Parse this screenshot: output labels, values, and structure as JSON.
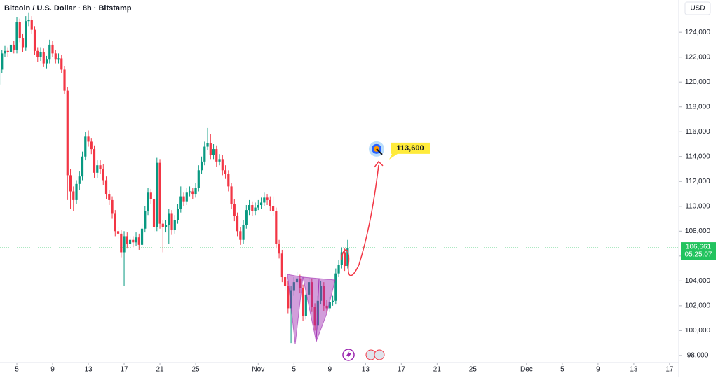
{
  "chart_data": {
    "type": "candlestick",
    "title": "Bitcoin / U.S. Dollar · 8h · Bitstamp",
    "currency": "USD",
    "up_color": "#089981",
    "down_color": "#f23645",
    "xlim": [
      0.35,
      226.2
    ],
    "ylim": [
      97600,
      126600
    ],
    "xticks": [
      {
        "value": 6,
        "label": "5"
      },
      {
        "value": 18,
        "label": "9"
      },
      {
        "value": 30,
        "label": "13"
      },
      {
        "value": 42,
        "label": "17"
      },
      {
        "value": 54,
        "label": "21"
      },
      {
        "value": 66,
        "label": "25"
      },
      {
        "value": 87,
        "label": "Nov"
      },
      {
        "value": 99,
        "label": "5"
      },
      {
        "value": 111,
        "label": "9"
      },
      {
        "value": 123,
        "label": "13"
      },
      {
        "value": 135,
        "label": "17"
      },
      {
        "value": 147,
        "label": "21"
      },
      {
        "value": 159,
        "label": "25"
      },
      {
        "value": 177,
        "label": "Dec"
      },
      {
        "value": 189,
        "label": "5"
      },
      {
        "value": 201,
        "label": "9"
      },
      {
        "value": 213,
        "label": "13"
      },
      {
        "value": 225,
        "label": "17"
      }
    ],
    "yticks": [
      {
        "value": 98000,
        "label": "98,000"
      },
      {
        "value": 100000,
        "label": "100,000"
      },
      {
        "value": 102000,
        "label": "102,000"
      },
      {
        "value": 104000,
        "label": "104,000"
      },
      {
        "value": 106000,
        "label": "106,000"
      },
      {
        "value": 108000,
        "label": "108,000"
      },
      {
        "value": 110000,
        "label": "110,000"
      },
      {
        "value": 112000,
        "label": "112,000"
      },
      {
        "value": 114000,
        "label": "114,000"
      },
      {
        "value": 116000,
        "label": "116,000"
      },
      {
        "value": 118000,
        "label": "118,000"
      },
      {
        "value": 120000,
        "label": "120,000"
      },
      {
        "value": 122000,
        "label": "122,000"
      },
      {
        "value": 124000,
        "label": "124,000"
      }
    ],
    "last_price": {
      "value": 106661,
      "label": "106,661",
      "countdown": "05:25:07",
      "color": "#22c35e"
    },
    "target": {
      "value": 113600,
      "label": "113,600"
    },
    "candles": [
      [
        119800,
        121300,
        119300,
        121000
      ],
      [
        121000,
        122600,
        120700,
        122300
      ],
      [
        122300,
        122900,
        122000,
        122500
      ],
      [
        122500,
        122800,
        122000,
        122400
      ],
      [
        122400,
        123400,
        122100,
        123000
      ],
      [
        123000,
        123300,
        122300,
        122600
      ],
      [
        122600,
        125200,
        122300,
        124800
      ],
      [
        124800,
        125100,
        123200,
        123500
      ],
      [
        123500,
        123900,
        122400,
        122800
      ],
      [
        122800,
        125300,
        122500,
        124900
      ],
      [
        124900,
        125600,
        124500,
        125000
      ],
      [
        125000,
        125300,
        123900,
        124200
      ],
      [
        124200,
        124500,
        122200,
        122500
      ],
      [
        122500,
        122800,
        121600,
        122000
      ],
      [
        122000,
        122800,
        121700,
        122400
      ],
      [
        122400,
        122700,
        121200,
        121500
      ],
      [
        121500,
        122100,
        121100,
        121800
      ],
      [
        121800,
        123400,
        121500,
        123000
      ],
      [
        123000,
        123300,
        122000,
        122300
      ],
      [
        122300,
        122600,
        121500,
        121800
      ],
      [
        121800,
        122300,
        121500,
        121900
      ],
      [
        121900,
        122200,
        120700,
        121000
      ],
      [
        121000,
        121300,
        119000,
        119300
      ],
      [
        119300,
        119600,
        110500,
        112500
      ],
      [
        112500,
        113000,
        109800,
        111200
      ],
      [
        111200,
        111600,
        109600,
        110500
      ],
      [
        110500,
        112100,
        110200,
        111800
      ],
      [
        111800,
        112800,
        111300,
        112400
      ],
      [
        112400,
        114400,
        112100,
        114000
      ],
      [
        114000,
        116000,
        113700,
        115600
      ],
      [
        115600,
        116100,
        114800,
        115200
      ],
      [
        115200,
        115500,
        114200,
        114600
      ],
      [
        114600,
        114900,
        112300,
        112700
      ],
      [
        112700,
        113700,
        112300,
        113300
      ],
      [
        113300,
        113700,
        112600,
        113000
      ],
      [
        113000,
        113400,
        111700,
        112100
      ],
      [
        112100,
        112400,
        110600,
        111000
      ],
      [
        111000,
        111300,
        110100,
        110500
      ],
      [
        110500,
        110800,
        109000,
        109400
      ],
      [
        109400,
        109700,
        107600,
        108000
      ],
      [
        108000,
        108300,
        107400,
        107800
      ],
      [
        107800,
        108100,
        105900,
        106300
      ],
      [
        106300,
        108000,
        103600,
        107600
      ],
      [
        107600,
        107900,
        106600,
        107000
      ],
      [
        107000,
        107600,
        106700,
        107300
      ],
      [
        107300,
        107600,
        106700,
        107100
      ],
      [
        107100,
        107900,
        106800,
        107500
      ],
      [
        107500,
        107800,
        106500,
        106900
      ],
      [
        106900,
        108600,
        106600,
        108200
      ],
      [
        108200,
        110000,
        107900,
        109600
      ],
      [
        109600,
        111500,
        109300,
        111100
      ],
      [
        111100,
        111400,
        110200,
        110600
      ],
      [
        110600,
        110900,
        107900,
        108300
      ],
      [
        108300,
        113900,
        108000,
        113500
      ],
      [
        113500,
        113800,
        108200,
        108600
      ],
      [
        108600,
        108900,
        106300,
        108300
      ],
      [
        108300,
        108900,
        107900,
        108500
      ],
      [
        108500,
        109800,
        107000,
        109400
      ],
      [
        109400,
        109700,
        107700,
        108100
      ],
      [
        108100,
        109300,
        107800,
        108900
      ],
      [
        108900,
        110200,
        108600,
        109800
      ],
      [
        109800,
        111600,
        109500,
        110800
      ],
      [
        110800,
        111100,
        110000,
        110400
      ],
      [
        110400,
        111500,
        110100,
        111100
      ],
      [
        111100,
        111600,
        110800,
        111200
      ],
      [
        111200,
        111500,
        110600,
        111000
      ],
      [
        111000,
        111900,
        110700,
        111500
      ],
      [
        111500,
        113300,
        111200,
        112900
      ],
      [
        112900,
        114000,
        112600,
        113600
      ],
      [
        113600,
        115200,
        113300,
        114800
      ],
      [
        114800,
        116300,
        114500,
        115100
      ],
      [
        115100,
        115800,
        113800,
        114100
      ],
      [
        114100,
        115000,
        113800,
        114600
      ],
      [
        114600,
        114900,
        113200,
        113600
      ],
      [
        113600,
        114200,
        113300,
        113800
      ],
      [
        113800,
        114100,
        112500,
        112900
      ],
      [
        112900,
        113300,
        112200,
        112600
      ],
      [
        112600,
        112900,
        111200,
        111600
      ],
      [
        111600,
        111900,
        109800,
        110200
      ],
      [
        110200,
        110600,
        108800,
        109200
      ],
      [
        109200,
        109500,
        107600,
        108000
      ],
      [
        108000,
        108300,
        106900,
        107300
      ],
      [
        107300,
        108900,
        107000,
        108500
      ],
      [
        108500,
        110100,
        108200,
        109700
      ],
      [
        109700,
        110500,
        109300,
        110100
      ],
      [
        110100,
        110400,
        109200,
        109600
      ],
      [
        109600,
        110300,
        109300,
        109900
      ],
      [
        109900,
        110500,
        109700,
        110100
      ],
      [
        110100,
        110700,
        109800,
        110300
      ],
      [
        110300,
        111100,
        110000,
        110700
      ],
      [
        110700,
        111000,
        110100,
        110500
      ],
      [
        110500,
        110800,
        109600,
        110000
      ],
      [
        110000,
        110800,
        109200,
        109600
      ],
      [
        109600,
        109900,
        106600,
        107000
      ],
      [
        107000,
        107300,
        105800,
        106200
      ],
      [
        106200,
        106500,
        103900,
        104300
      ],
      [
        104300,
        104600,
        103200,
        103600
      ],
      [
        103600,
        104000,
        101400,
        101800
      ],
      [
        101800,
        103600,
        99000,
        103200
      ],
      [
        103200,
        104300,
        102800,
        103900
      ],
      [
        103900,
        104700,
        103700,
        104200
      ],
      [
        104200,
        104500,
        103000,
        103400
      ],
      [
        103400,
        103700,
        100800,
        101200
      ],
      [
        101200,
        103300,
        100900,
        102900
      ],
      [
        102900,
        104300,
        102500,
        103900
      ],
      [
        103900,
        104200,
        101500,
        101900
      ],
      [
        101900,
        102200,
        100000,
        100400
      ],
      [
        100400,
        102800,
        100100,
        102400
      ],
      [
        102400,
        104000,
        102100,
        103600
      ],
      [
        103600,
        103900,
        101600,
        102000
      ],
      [
        102000,
        102500,
        101400,
        101800
      ],
      [
        101800,
        102700,
        101500,
        102300
      ],
      [
        102300,
        102800,
        102000,
        102400
      ],
      [
        102400,
        105000,
        102100,
        104600
      ],
      [
        104600,
        105700,
        104300,
        105300
      ],
      [
        105300,
        106700,
        105000,
        106300
      ],
      [
        106300,
        106600,
        104800,
        105200
      ],
      [
        105200,
        107300,
        105000,
        106661
      ]
    ]
  }
}
